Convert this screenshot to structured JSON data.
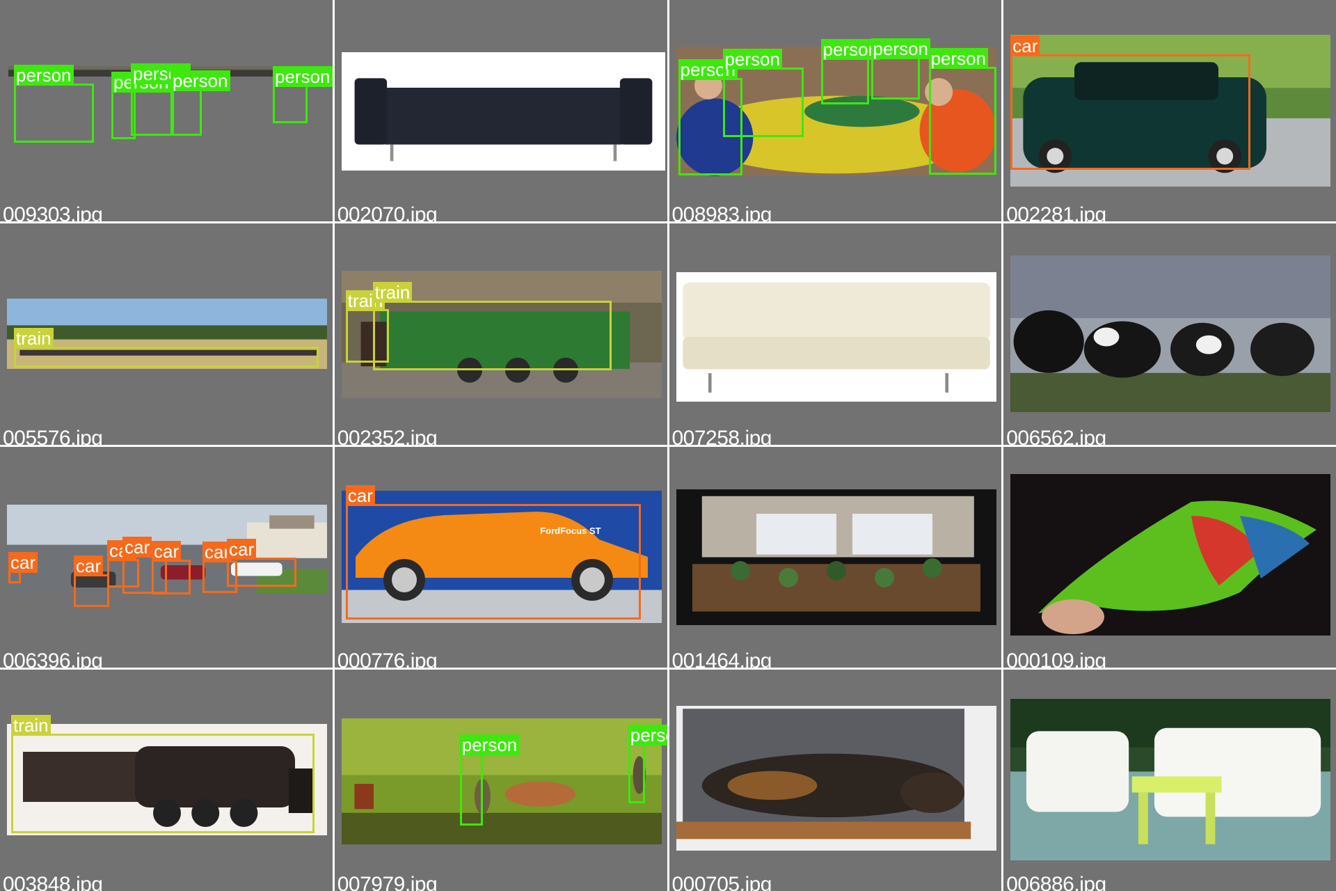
{
  "classes": {
    "person": {
      "color": "#3ee80f"
    },
    "car": {
      "color": "#f56a1c"
    },
    "train": {
      "color": "#c9d23a"
    }
  },
  "tiles": [
    {
      "file": "009303.jpg",
      "scene": "people-cafe",
      "boxes": [
        {
          "label": "person"
        },
        {
          "label": "person"
        },
        {
          "label": "person"
        },
        {
          "label": "person"
        },
        {
          "label": "person"
        }
      ]
    },
    {
      "file": "002070.jpg",
      "scene": "dark-sofa",
      "boxes": []
    },
    {
      "file": "008983.jpg",
      "scene": "kids-table",
      "boxes": [
        {
          "label": "person"
        },
        {
          "label": "person"
        },
        {
          "label": "person"
        },
        {
          "label": "person"
        },
        {
          "label": "person"
        }
      ]
    },
    {
      "file": "002281.jpg",
      "scene": "mini-car",
      "boxes": [
        {
          "label": "car"
        }
      ]
    },
    {
      "file": "005576.jpg",
      "scene": "landscape-train",
      "boxes": [
        {
          "label": "train"
        }
      ]
    },
    {
      "file": "002352.jpg",
      "scene": "model-locomotive",
      "boxes": [
        {
          "label": "train"
        },
        {
          "label": "train"
        }
      ]
    },
    {
      "file": "007258.jpg",
      "scene": "white-sofa",
      "boxes": []
    },
    {
      "file": "006562.jpg",
      "scene": "cows-field",
      "boxes": []
    },
    {
      "file": "006396.jpg",
      "scene": "street-cars",
      "boxes": [
        {
          "label": "car"
        },
        {
          "label": "car"
        },
        {
          "label": "car"
        },
        {
          "label": "car"
        },
        {
          "label": "car"
        },
        {
          "label": "car"
        },
        {
          "label": "car"
        }
      ]
    },
    {
      "file": "000776.jpg",
      "scene": "orange-car",
      "boxes": [
        {
          "label": "car"
        }
      ],
      "texts": {
        "brand": "FordFocus ST"
      }
    },
    {
      "file": "001464.jpg",
      "scene": "potted-plants",
      "boxes": []
    },
    {
      "file": "000109.jpg",
      "scene": "parrot-wing",
      "boxes": []
    },
    {
      "file": "003848.jpg",
      "scene": "black-locomotive",
      "boxes": [
        {
          "label": "train"
        }
      ]
    },
    {
      "file": "007979.jpg",
      "scene": "field-cow",
      "boxes": [
        {
          "label": "person"
        },
        {
          "label": "person"
        }
      ]
    },
    {
      "file": "000705.jpg",
      "scene": "sleeping-cat",
      "boxes": []
    },
    {
      "file": "006886.jpg",
      "scene": "white-chairs",
      "boxes": []
    }
  ]
}
